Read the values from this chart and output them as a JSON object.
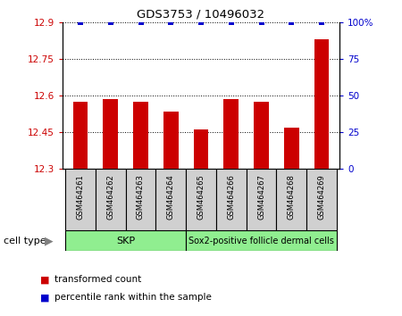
{
  "title": "GDS3753 / 10496032",
  "samples": [
    "GSM464261",
    "GSM464262",
    "GSM464263",
    "GSM464264",
    "GSM464265",
    "GSM464266",
    "GSM464267",
    "GSM464268",
    "GSM464269"
  ],
  "red_values": [
    12.575,
    12.585,
    12.575,
    12.535,
    12.46,
    12.585,
    12.575,
    12.47,
    12.83
  ],
  "blue_values": [
    100,
    100,
    100,
    100,
    100,
    100,
    100,
    100,
    100
  ],
  "ylim_left": [
    12.3,
    12.9
  ],
  "ylim_right": [
    0,
    100
  ],
  "yticks_left": [
    12.3,
    12.45,
    12.6,
    12.75,
    12.9
  ],
  "yticks_right": [
    0,
    25,
    50,
    75,
    100
  ],
  "ytick_labels_left": [
    "12.3",
    "12.45",
    "12.6",
    "12.75",
    "12.9"
  ],
  "ytick_labels_right": [
    "0",
    "25",
    "50",
    "75",
    "100%"
  ],
  "cell_type_divider": 4,
  "skp_label": "SKP",
  "sox_label": "Sox2-positive follicle dermal cells",
  "cell_color_skp": "#90EE90",
  "cell_color_sox": "#90EE90",
  "bar_color": "#cc0000",
  "blue_color": "#0000cc",
  "bar_width": 0.5,
  "bg_color": "#d0d0d0",
  "legend_red_label": "transformed count",
  "legend_blue_label": "percentile rank within the sample",
  "cell_type_label": "cell type"
}
